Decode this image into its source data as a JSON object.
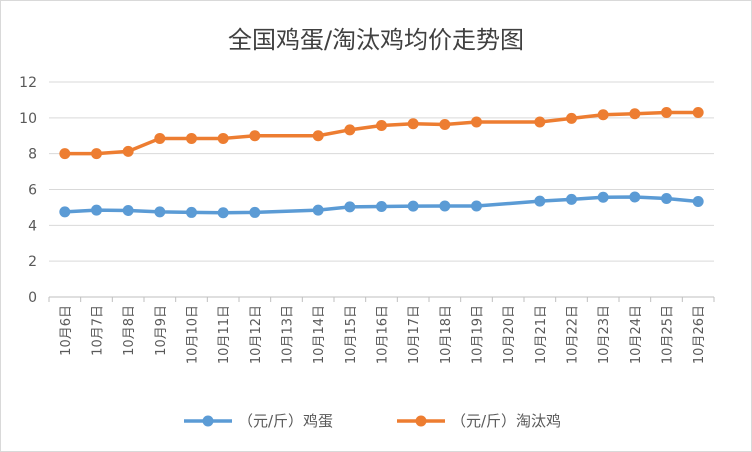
{
  "chart_data": {
    "type": "line",
    "title": "全国鸡蛋/淘汰鸡均价走势图",
    "categories": [
      "10月6日",
      "10月7日",
      "10月8日",
      "10月9日",
      "10月10日",
      "10月11日",
      "10月12日",
      "10月13日",
      "10月14日",
      "10月15日",
      "10月16日",
      "10月17日",
      "10月18日",
      "10月19日",
      "10月20日",
      "10月21日",
      "10月22日",
      "10月23日",
      "10月24日",
      "10月25日",
      "10月26日"
    ],
    "ylim": [
      0,
      12
    ],
    "yticks": [
      0,
      2,
      4,
      6,
      8,
      10,
      12
    ],
    "grid": true,
    "legend_position": "bottom",
    "series": [
      {
        "name": "（元/斤）鸡蛋",
        "color": "#5b9bd5",
        "values": [
          4.75,
          4.85,
          4.83,
          4.75,
          4.72,
          4.7,
          4.72,
          null,
          4.85,
          5.03,
          5.05,
          5.07,
          5.08,
          5.08,
          null,
          5.35,
          5.45,
          5.57,
          5.58,
          5.5,
          5.33
        ]
      },
      {
        "name": "（元/斤）淘汰鸡",
        "color": "#ed7d31",
        "values": [
          8.0,
          8.0,
          8.13,
          8.85,
          8.85,
          8.85,
          9.0,
          null,
          9.0,
          9.33,
          9.57,
          9.67,
          9.63,
          9.77,
          null,
          9.77,
          9.97,
          10.17,
          10.23,
          10.3,
          10.3
        ]
      }
    ]
  }
}
